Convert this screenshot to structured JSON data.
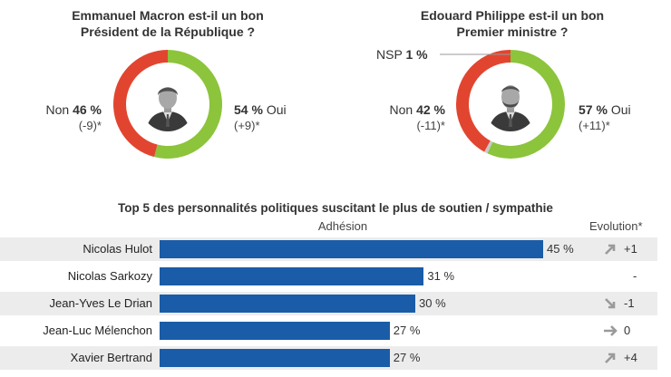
{
  "donuts": [
    {
      "title_line1": "Emmanuel Macron est-il un bon",
      "title_line2": "Président de la République ?",
      "slices": [
        {
          "label": "Oui",
          "value": 54,
          "pct": "54 %",
          "change": "(+9)*",
          "color": "#8cc43b"
        },
        {
          "label": "Non",
          "value": 46,
          "pct": "46 %",
          "change": "(-9)*",
          "color": "#e2452f"
        }
      ]
    },
    {
      "title_line1": "Edouard Philippe est-il un bon",
      "title_line2": "Premier ministre ?",
      "slices": [
        {
          "label": "Oui",
          "value": 57,
          "pct": "57 %",
          "change": "(+11)*",
          "color": "#8cc43b"
        },
        {
          "label": "Non",
          "value": 42,
          "pct": "42 %",
          "change": "(-11)*",
          "color": "#e2452f"
        },
        {
          "label": "NSP",
          "value": 1,
          "pct": "1 %",
          "change": "",
          "color": "#c8c8c8"
        }
      ]
    }
  ],
  "bars": {
    "title": "Top 5 des personnalités politiques suscitant le plus de soutien / sympathie",
    "col_adhesion": "Adhésion",
    "col_evolution": "Evolution*",
    "bar_color": "#1a5ca8"
  },
  "chart_data": [
    {
      "type": "pie",
      "title": "Emmanuel Macron est-il un bon Président de la République ?",
      "categories": [
        "Oui",
        "Non"
      ],
      "values": [
        54,
        46
      ],
      "changes": [
        "+9",
        "-9"
      ]
    },
    {
      "type": "pie",
      "title": "Edouard Philippe est-il un bon Premier ministre ?",
      "categories": [
        "Oui",
        "Non",
        "NSP"
      ],
      "values": [
        57,
        42,
        1
      ],
      "changes": [
        "+11",
        "-11",
        ""
      ]
    },
    {
      "type": "bar",
      "title": "Top 5 des personnalités politiques suscitant le plus de soutien / sympathie",
      "xlabel": "Adhésion",
      "categories": [
        "Nicolas Hulot",
        "Nicolas Sarkozy",
        "Jean-Yves Le Drian",
        "Jean-Luc Mélenchon",
        "Xavier Bertrand"
      ],
      "values": [
        45,
        31,
        30,
        27,
        27
      ],
      "value_labels": [
        "45 %",
        "31 %",
        "30 %",
        "27 %",
        "27 %"
      ],
      "evolution": [
        "+1",
        "-",
        "-1",
        "0",
        "+4"
      ],
      "evolution_arrows": [
        "up",
        "none",
        "down",
        "flat",
        "up"
      ]
    }
  ]
}
